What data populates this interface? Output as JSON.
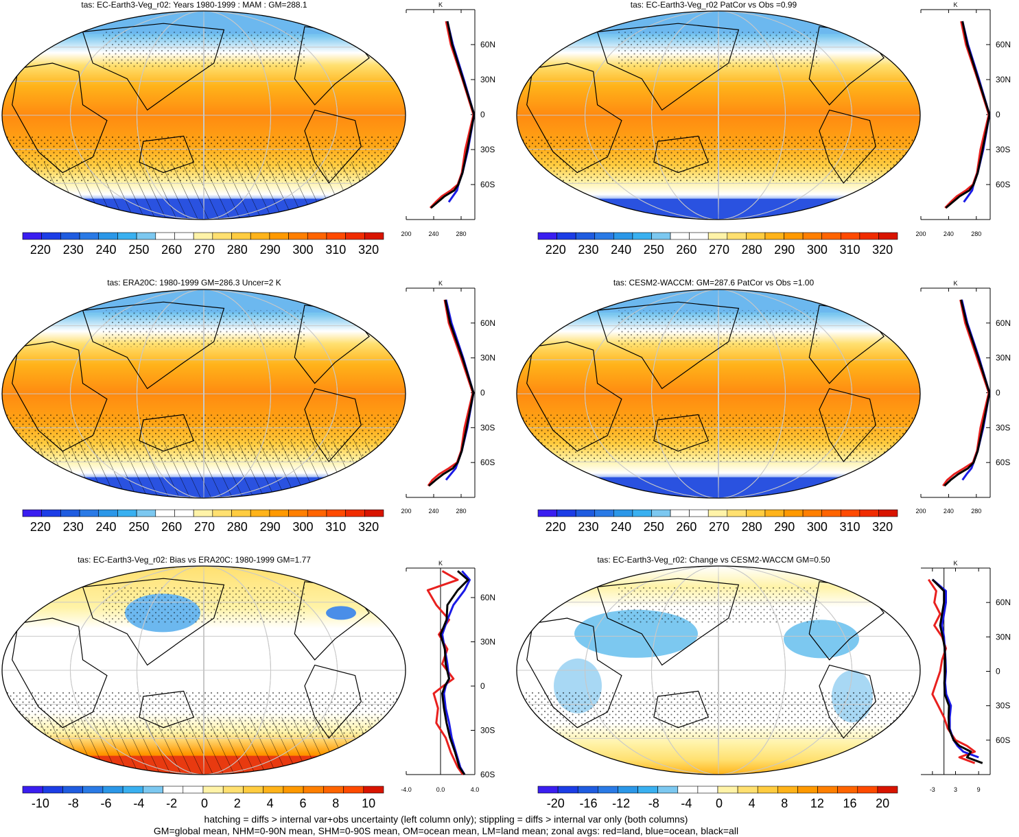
{
  "footer": {
    "line1": "hatching = diffs > internal var+obs uncertainty (left column only); stippling = diffs > internal var only (both columns)",
    "line2": "GM=global mean, NHM=0-90N mean, SHM=0-90S mean, OM=ocean mean, LM=land mean; zonal avgs: red=land, blue=ocean, black=all"
  },
  "colors": {
    "land": "#e8201e",
    "ocean": "#1a1ae6",
    "all": "#000000",
    "abs_palette": [
      "#3a1ef0",
      "#1c3de6",
      "#1f5ce0",
      "#2a7ae6",
      "#2b97e8",
      "#39b0f0",
      "#7cc8f0",
      "#ffffff",
      "#ffffff",
      "#fff3a8",
      "#ffe070",
      "#ffcc40",
      "#ffb31a",
      "#ff9900",
      "#ff7f00",
      "#ff6400",
      "#ff4a00",
      "#f02c00",
      "#d81400"
    ],
    "diff_palette": [
      "#3a1ef0",
      "#1c3de6",
      "#1f5ce0",
      "#2a7ae6",
      "#2b97e8",
      "#39b0f0",
      "#7cc8f0",
      "#ffffff",
      "#ffffff",
      "#fff3a8",
      "#ffe070",
      "#ffcc40",
      "#ffb31a",
      "#ff9900",
      "#ff7f00",
      "#ff6400",
      "#ff4a00",
      "#d81400"
    ]
  },
  "panels": [
    {
      "id": "p1",
      "title": "tas: EC-Earth3-Veg_r02: Years 1980-1999 : MAM : GM=288.1",
      "map_type": "abs",
      "colorbar": [
        "220",
        "230",
        "240",
        "250",
        "260",
        "270",
        "280",
        "290",
        "300",
        "310",
        "320"
      ],
      "zonal_unit": "K",
      "zonal_xticks": [
        "200",
        "240",
        "280"
      ],
      "zonal_lat_ticks": [
        "60N",
        "30N",
        "0",
        "30S",
        "60S"
      ]
    },
    {
      "id": "p2",
      "title": "tas: EC-Earth3-Veg_r02 PatCor vs Obs =0.99",
      "map_type": "abs",
      "colorbar": [
        "220",
        "230",
        "240",
        "250",
        "260",
        "270",
        "280",
        "290",
        "300",
        "310",
        "320"
      ],
      "zonal_unit": "K",
      "zonal_xticks": [
        "200",
        "240",
        "280"
      ],
      "zonal_lat_ticks": [
        "60N",
        "30N",
        "0",
        "30S",
        "60S"
      ]
    },
    {
      "id": "p3",
      "title": "tas: ERA20C: 1980-1999 GM=286.3 Uncer=2 K",
      "map_type": "abs",
      "colorbar": [
        "220",
        "230",
        "240",
        "250",
        "260",
        "270",
        "280",
        "290",
        "300",
        "310",
        "320"
      ],
      "zonal_unit": "K",
      "zonal_xticks": [
        "200",
        "240",
        "280"
      ],
      "zonal_lat_ticks": [
        "60N",
        "30N",
        "0",
        "30S",
        "60S"
      ]
    },
    {
      "id": "p4",
      "title": "tas: CESM2-WACCM: GM=287.6 PatCor vs Obs =1.00",
      "map_type": "abs",
      "colorbar": [
        "220",
        "230",
        "240",
        "250",
        "260",
        "270",
        "280",
        "290",
        "300",
        "310",
        "320"
      ],
      "zonal_unit": "K",
      "zonal_xticks": [
        "200",
        "240",
        "280"
      ],
      "zonal_lat_ticks": [
        "60N",
        "30N",
        "0",
        "30S",
        "60S"
      ]
    },
    {
      "id": "p5",
      "title": "tas: EC-Earth3-Veg_r02: Bias vs ERA20C: 1980-1999 GM=1.77",
      "map_type": "bias",
      "colorbar": [
        "-10",
        "-8",
        "-6",
        "-4",
        "-2",
        "0",
        "2",
        "4",
        "6",
        "8",
        "10"
      ],
      "zonal_unit": "K",
      "zonal_xticks": [
        "-4.0",
        "0.0",
        "4.0"
      ],
      "zonal_lat_ticks": [
        "60N",
        "30N",
        "0",
        "30S",
        "60S"
      ]
    },
    {
      "id": "p6",
      "title": "tas: EC-Earth3-Veg_r02: Change vs CESM2-WACCM GM=0.50",
      "map_type": "change",
      "colorbar": [
        "-20",
        "-16",
        "-12",
        "-8",
        "-4",
        "0",
        "4",
        "8",
        "12",
        "16",
        "20"
      ],
      "zonal_unit": "K",
      "zonal_xticks": [
        "-3",
        "3",
        "9"
      ],
      "zonal_lat_ticks": [
        "60N",
        "30N",
        "0",
        "30S",
        "60S"
      ]
    }
  ],
  "chart_data": [
    {
      "type": "heatmap",
      "panel": "p1",
      "title": "tas: EC-Earth3-Veg_r02: Years 1980-1999 : MAM : GM=288.1",
      "variable": "tas",
      "units": "K",
      "colorbar_ticks": [
        220,
        230,
        240,
        250,
        260,
        270,
        280,
        290,
        300,
        310,
        320
      ],
      "global_mean": 288.1,
      "period": "1980-1999",
      "season": "MAM"
    },
    {
      "type": "line",
      "panel": "p1-zonal",
      "xlabel": "K",
      "xlim": [
        200,
        300
      ],
      "ylim": [
        -90,
        90
      ],
      "series": [
        {
          "color": "red",
          "lat": [
            80,
            60,
            30,
            0,
            -30,
            -50,
            -60,
            -65,
            -70,
            -75,
            -80
          ],
          "values": [
            258,
            265,
            282,
            298,
            286,
            281,
            275,
            265,
            252,
            243,
            235
          ]
        },
        {
          "color": "blue",
          "lat": [
            80,
            60,
            30,
            0,
            -30,
            -50,
            -60,
            -65,
            -70,
            -75
          ],
          "values": [
            260,
            268,
            284,
            299,
            290,
            282,
            276,
            274,
            268,
            262
          ]
        },
        {
          "color": "black",
          "lat": [
            80,
            60,
            30,
            0,
            -30,
            -50,
            -60,
            -65,
            -70,
            -75,
            -80
          ],
          "values": [
            260,
            267,
            283,
            299,
            289,
            282,
            276,
            270,
            256,
            246,
            236
          ]
        }
      ]
    },
    {
      "type": "heatmap",
      "panel": "p2",
      "title": "tas: EC-Earth3-Veg_r02 PatCor vs Obs =0.99",
      "variable": "tas",
      "units": "K",
      "colorbar_ticks": [
        220,
        230,
        240,
        250,
        260,
        270,
        280,
        290,
        300,
        310,
        320
      ],
      "pattern_correlation": 0.99
    },
    {
      "type": "line",
      "panel": "p2-zonal",
      "xlabel": "K",
      "xlim": [
        200,
        300
      ],
      "ylim": [
        -90,
        90
      ],
      "series": [
        {
          "color": "red",
          "lat": [
            80,
            60,
            30,
            0,
            -30,
            -50,
            -60,
            -65,
            -70,
            -75,
            -80
          ],
          "values": [
            258,
            265,
            282,
            298,
            286,
            281,
            275,
            265,
            252,
            243,
            235
          ]
        },
        {
          "color": "blue",
          "lat": [
            80,
            60,
            30,
            0,
            -30,
            -50,
            -60,
            -65,
            -70,
            -75
          ],
          "values": [
            260,
            268,
            284,
            299,
            290,
            282,
            276,
            274,
            268,
            262
          ]
        },
        {
          "color": "black",
          "lat": [
            80,
            60,
            30,
            0,
            -30,
            -50,
            -60,
            -65,
            -70,
            -75,
            -80
          ],
          "values": [
            260,
            267,
            283,
            299,
            289,
            282,
            276,
            270,
            256,
            246,
            236
          ]
        }
      ]
    },
    {
      "type": "heatmap",
      "panel": "p3",
      "title": "tas: ERA20C: 1980-1999 GM=286.3 Uncer=2 K",
      "variable": "tas",
      "units": "K",
      "colorbar_ticks": [
        220,
        230,
        240,
        250,
        260,
        270,
        280,
        290,
        300,
        310,
        320
      ],
      "global_mean": 286.3,
      "uncertainty": 2
    },
    {
      "type": "line",
      "panel": "p3-zonal",
      "xlabel": "K",
      "xlim": [
        200,
        300
      ],
      "ylim": [
        -90,
        90
      ],
      "series": [
        {
          "color": "red",
          "lat": [
            80,
            60,
            30,
            0,
            -30,
            -50,
            -60,
            -65,
            -70,
            -75,
            -80
          ],
          "values": [
            256,
            262,
            280,
            297,
            285,
            280,
            274,
            262,
            248,
            238,
            232
          ]
        },
        {
          "color": "blue",
          "lat": [
            80,
            60,
            30,
            0,
            -30,
            -50,
            -60,
            -65,
            -70,
            -75
          ],
          "values": [
            258,
            266,
            283,
            298,
            289,
            281,
            275,
            272,
            265,
            258
          ]
        },
        {
          "color": "black",
          "lat": [
            80,
            60,
            30,
            0,
            -30,
            -50,
            -60,
            -65,
            -70,
            -75,
            -80
          ],
          "values": [
            257,
            264,
            282,
            298,
            288,
            281,
            275,
            268,
            254,
            243,
            233
          ]
        }
      ]
    },
    {
      "type": "heatmap",
      "panel": "p4",
      "title": "tas: CESM2-WACCM: GM=287.6 PatCor vs Obs =1.00",
      "variable": "tas",
      "units": "K",
      "colorbar_ticks": [
        220,
        230,
        240,
        250,
        260,
        270,
        280,
        290,
        300,
        310,
        320
      ],
      "global_mean": 287.6,
      "pattern_correlation": 1.0
    },
    {
      "type": "line",
      "panel": "p4-zonal",
      "xlabel": "K",
      "xlim": [
        200,
        300
      ],
      "ylim": [
        -90,
        90
      ],
      "series": [
        {
          "color": "red",
          "lat": [
            80,
            60,
            30,
            0,
            -30,
            -50,
            -60,
            -65,
            -70,
            -75,
            -80
          ],
          "values": [
            257,
            264,
            281,
            298,
            286,
            281,
            275,
            262,
            248,
            238,
            232
          ]
        },
        {
          "color": "blue",
          "lat": [
            80,
            60,
            30,
            0,
            -30,
            -50,
            -60,
            -65,
            -70,
            -75
          ],
          "values": [
            259,
            267,
            284,
            299,
            290,
            282,
            276,
            273,
            266,
            260
          ]
        },
        {
          "color": "black",
          "lat": [
            80,
            60,
            30,
            0,
            -30,
            -50,
            -60,
            -65,
            -70,
            -75,
            -80
          ],
          "values": [
            258,
            266,
            283,
            299,
            289,
            282,
            276,
            268,
            254,
            243,
            234
          ]
        }
      ]
    },
    {
      "type": "heatmap",
      "panel": "p5",
      "title": "tas: EC-Earth3-Veg_r02: Bias vs ERA20C: 1980-1999 GM=1.77",
      "variable": "tas",
      "units": "K",
      "colorbar_ticks": [
        -10,
        -8,
        -6,
        -4,
        -2,
        0,
        2,
        4,
        6,
        8,
        10
      ],
      "global_mean": 1.77
    },
    {
      "type": "line",
      "panel": "p5-zonal",
      "xlabel": "K",
      "xlim": [
        -4,
        4
      ],
      "ylim": [
        -60,
        80
      ],
      "series": [
        {
          "color": "red",
          "lat": [
            78,
            72,
            65,
            55,
            45,
            35,
            25,
            15,
            5,
            0,
            -5,
            -15,
            -25,
            -35,
            -45,
            -55,
            -60
          ],
          "values": [
            0.2,
            2.0,
            -1.5,
            -0.5,
            1.0,
            -0.2,
            0.8,
            0.2,
            1.5,
            0.3,
            -0.8,
            -0.3,
            -0.5,
            0.6,
            1.2,
            2.0,
            2.6
          ]
        },
        {
          "color": "blue",
          "lat": [
            78,
            72,
            65,
            55,
            45,
            35,
            25,
            15,
            5,
            0,
            -5,
            -15,
            -25,
            -35,
            -45,
            -55,
            -60
          ],
          "values": [
            2.5,
            3.4,
            2.8,
            1.5,
            0.8,
            0.2,
            0.5,
            0.8,
            1.0,
            0.6,
            0.4,
            0.6,
            1.0,
            1.3,
            1.8,
            2.3,
            2.8
          ]
        },
        {
          "color": "black",
          "lat": [
            78,
            72,
            65,
            55,
            45,
            35,
            25,
            15,
            5,
            0,
            -5,
            -15,
            -25,
            -35,
            -45,
            -55,
            -60
          ],
          "values": [
            2.0,
            3.2,
            2.0,
            0.8,
            0.7,
            0.0,
            0.5,
            0.6,
            1.0,
            0.5,
            0.2,
            0.4,
            0.7,
            1.1,
            1.7,
            2.2,
            2.8
          ]
        }
      ]
    },
    {
      "type": "heatmap",
      "panel": "p6",
      "title": "tas: EC-Earth3-Veg_r02: Change vs CESM2-WACCM GM=0.50",
      "variable": "tas",
      "units": "K",
      "colorbar_ticks": [
        -20,
        -16,
        -12,
        -8,
        -4,
        0,
        4,
        8,
        12,
        16,
        20
      ],
      "global_mean": 0.5
    },
    {
      "type": "line",
      "panel": "p6-zonal",
      "xlabel": "K",
      "xlim": [
        -6,
        12
      ],
      "ylim": [
        -90,
        90
      ],
      "series": [
        {
          "color": "red",
          "lat": [
            80,
            70,
            60,
            50,
            40,
            30,
            20,
            10,
            0,
            -10,
            -20,
            -30,
            -40,
            -50,
            -60,
            -65,
            -70,
            -75,
            -80
          ],
          "values": [
            -4,
            -2,
            -2.5,
            -1,
            -2.5,
            -0.5,
            0.5,
            -0.5,
            -1,
            -2,
            -3,
            -1.5,
            0,
            1,
            3,
            6,
            8,
            4,
            8
          ]
        },
        {
          "color": "blue",
          "lat": [
            80,
            70,
            60,
            50,
            40,
            30,
            20,
            10,
            0,
            -10,
            -20,
            -30,
            -40,
            -50,
            -60,
            -65,
            -70,
            -75
          ],
          "values": [
            -3,
            0.5,
            0.5,
            0,
            -0.5,
            0,
            0.2,
            0.4,
            0.5,
            0.3,
            0.6,
            1.8,
            1.5,
            1.5,
            2.5,
            3.5,
            5,
            9
          ]
        },
        {
          "color": "black",
          "lat": [
            80,
            70,
            60,
            50,
            40,
            30,
            20,
            10,
            0,
            -10,
            -20,
            -30,
            -40,
            -50,
            -60,
            -65,
            -70,
            -75,
            -80
          ],
          "values": [
            -3,
            0,
            0,
            -0.5,
            -1,
            -0.3,
            0.2,
            0.3,
            0.3,
            0.1,
            0.2,
            1.3,
            1.2,
            1.3,
            2.5,
            4,
            7,
            6,
            10
          ]
        }
      ]
    }
  ]
}
